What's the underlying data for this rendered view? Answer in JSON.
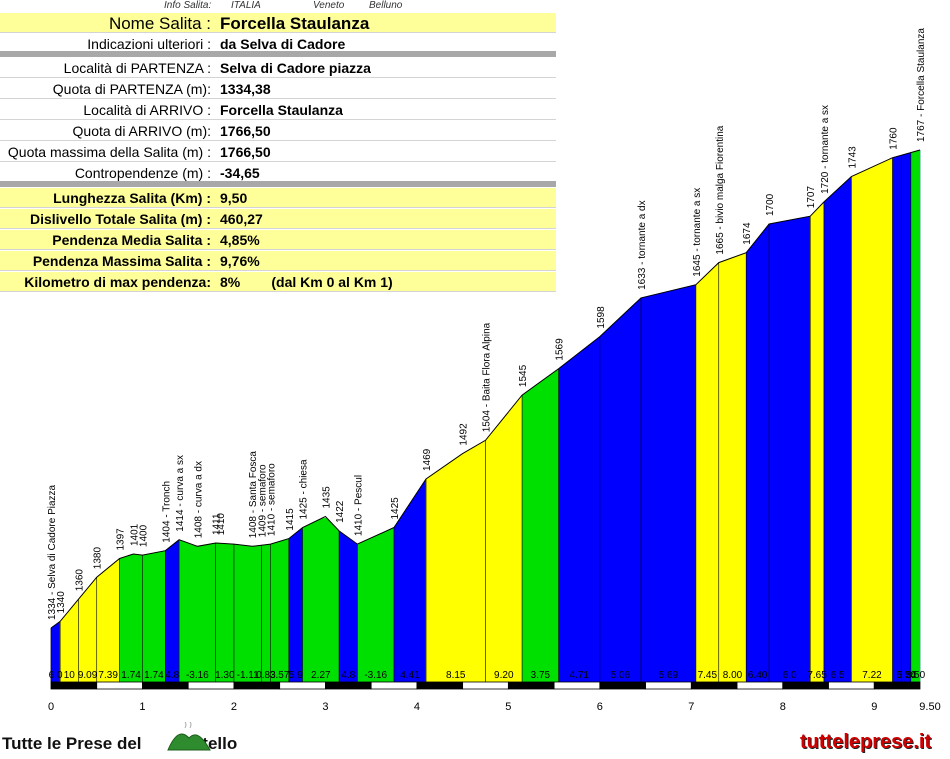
{
  "info_header": {
    "label": "Info Salita:",
    "country": "ITALIA",
    "region": "Veneto",
    "province": "Belluno"
  },
  "info_rows": [
    {
      "label": "Nome Salita :",
      "value": "Forcella Staulanza",
      "style": "title"
    },
    {
      "label": "Indicazioni ulteriori :",
      "value": "da Selva di Cadore",
      "style": "plain"
    },
    {
      "label": "Località di PARTENZA :",
      "value": "Selva di Cadore piazza",
      "style": "plain"
    },
    {
      "label": "Quota di PARTENZA (m):",
      "value": "1334,38",
      "style": "plain"
    },
    {
      "label": "Località di ARRIVO :",
      "value": "Forcella Staulanza",
      "style": "plain"
    },
    {
      "label": "Quota di ARRIVO (m):",
      "value": "1766,50",
      "style": "plain"
    },
    {
      "label": "Quota massima della Salita (m) :",
      "value": "1766,50",
      "style": "plain"
    },
    {
      "label": "Contropendenze (m) :",
      "value": "-34,65",
      "style": "plain"
    },
    {
      "label": "Lunghezza Salita (Km) :",
      "value": "9,50",
      "style": "summary"
    },
    {
      "label": "Dislivello Totale Salita (m) :",
      "value": "460,27",
      "style": "summary"
    },
    {
      "label": "Pendenza Media Salita :",
      "value": "4,85%",
      "style": "summary"
    },
    {
      "label": "Pendenza Massima Salita :",
      "value": "9,76%",
      "style": "summary"
    },
    {
      "label": "Kilometro di max pendenza:",
      "value": "8%        (dal Km 0 al Km 1)",
      "style": "summary"
    }
  ],
  "footer": {
    "left_text": "Tutte le Prese del",
    "left_text_tail": "ontello",
    "right_text": "tutteleprese.it"
  },
  "colors": {
    "blue": "#0000ff",
    "yellow": "#ffff00",
    "green": "#00e000",
    "black": "#000000",
    "row_yellow": "#ffff99"
  },
  "chart_data": {
    "type": "area",
    "x_ticks": [
      "0",
      "1",
      "2",
      "3",
      "4",
      "5",
      "6",
      "7",
      "8",
      "9",
      "9.50"
    ],
    "xlim": [
      0,
      9.5
    ],
    "profile_km": [
      0,
      0.1,
      0.3,
      0.5,
      0.75,
      0.9,
      1.0,
      1.25,
      1.4,
      1.6,
      1.8,
      2.0,
      2.2,
      2.3,
      2.4,
      2.6,
      2.75,
      3.0,
      3.15,
      3.35,
      3.75,
      4.1,
      4.5,
      4.75,
      5.15,
      5.55,
      6.0,
      6.45,
      7.05,
      7.3,
      7.6,
      7.85,
      8.3,
      8.45,
      8.75,
      9.2,
      9.5
    ],
    "profile_elev": [
      1334,
      1340,
      1360,
      1380,
      1397,
      1401,
      1400,
      1404,
      1414,
      1408,
      1411,
      1410,
      1408,
      1409,
      1410,
      1415,
      1425,
      1435,
      1422,
      1410,
      1425,
      1469,
      1492,
      1504,
      1545,
      1569,
      1598,
      1633,
      1645,
      1665,
      1674,
      1700,
      1707,
      1720,
      1743,
      1760,
      1767
    ],
    "segments": [
      {
        "x0": 0.0,
        "x1": 0.1,
        "color": "blue",
        "slope": "6.0"
      },
      {
        "x0": 0.1,
        "x1": 0.3,
        "color": "yellow",
        "slope": "10"
      },
      {
        "x0": 0.3,
        "x1": 0.5,
        "color": "yellow",
        "slope": "9.09"
      },
      {
        "x0": 0.5,
        "x1": 0.75,
        "color": "yellow",
        "slope": "7.39"
      },
      {
        "x0": 0.75,
        "x1": 1.0,
        "color": "green",
        "slope": "1.74"
      },
      {
        "x0": 1.0,
        "x1": 1.25,
        "color": "green",
        "slope": "1.74"
      },
      {
        "x0": 1.25,
        "x1": 1.4,
        "color": "blue",
        "slope": "4.8"
      },
      {
        "x0": 1.4,
        "x1": 1.8,
        "color": "green",
        "slope": "-3.16"
      },
      {
        "x0": 1.8,
        "x1": 2.0,
        "color": "green",
        "slope": "1.30"
      },
      {
        "x0": 2.0,
        "x1": 2.3,
        "color": "green",
        "slope": "-1.11"
      },
      {
        "x0": 2.3,
        "x1": 2.4,
        "color": "green",
        "slope": "0.83"
      },
      {
        "x0": 2.4,
        "x1": 2.6,
        "color": "green",
        "slope": "3.57"
      },
      {
        "x0": 2.6,
        "x1": 2.75,
        "color": "blue",
        "slope": "5.9"
      },
      {
        "x0": 2.75,
        "x1": 3.15,
        "color": "green",
        "slope": "2.27"
      },
      {
        "x0": 3.15,
        "x1": 3.35,
        "color": "blue",
        "slope": "4.8"
      },
      {
        "x0": 3.35,
        "x1": 3.75,
        "color": "green",
        "slope": "-3.16"
      },
      {
        "x0": 3.75,
        "x1": 4.1,
        "color": "blue",
        "slope": "4.41"
      },
      {
        "x0": 4.1,
        "x1": 4.75,
        "color": "yellow",
        "slope": "8.15"
      },
      {
        "x0": 4.75,
        "x1": 5.15,
        "color": "yellow",
        "slope": "9.20"
      },
      {
        "x0": 5.15,
        "x1": 5.55,
        "color": "green",
        "slope": "3.75"
      },
      {
        "x0": 5.55,
        "x1": 6.0,
        "color": "blue",
        "slope": "4.71"
      },
      {
        "x0": 6.0,
        "x1": 6.45,
        "color": "blue",
        "slope": "5.06"
      },
      {
        "x0": 6.45,
        "x1": 7.05,
        "color": "blue",
        "slope": "5.69"
      },
      {
        "x0": 7.05,
        "x1": 7.3,
        "color": "yellow",
        "slope": "7.45"
      },
      {
        "x0": 7.3,
        "x1": 7.6,
        "color": "yellow",
        "slope": "8.00"
      },
      {
        "x0": 7.6,
        "x1": 7.85,
        "color": "blue",
        "slope": "6.40"
      },
      {
        "x0": 7.85,
        "x1": 8.3,
        "color": "blue",
        "slope": "6.0"
      },
      {
        "x0": 8.3,
        "x1": 8.45,
        "color": "yellow",
        "slope": "7.65"
      },
      {
        "x0": 8.45,
        "x1": 8.75,
        "color": "blue",
        "slope": "6.5"
      },
      {
        "x0": 8.75,
        "x1": 9.2,
        "color": "yellow",
        "slope": "7.22"
      },
      {
        "x0": 9.2,
        "x1": 9.5,
        "color": "blue",
        "slope": "5.70"
      },
      {
        "x0": 9.5,
        "x1": 9.5,
        "color": "blue",
        "slope": "6.54"
      },
      {
        "x0": 9.5,
        "x1": 9.5,
        "color": "green",
        "slope": "3.50"
      }
    ],
    "labels": [
      {
        "km": 0.0,
        "text": "1334 - Selva di Cadore Piazza"
      },
      {
        "km": 0.1,
        "text": "1340"
      },
      {
        "km": 0.3,
        "text": "1360"
      },
      {
        "km": 0.5,
        "text": "1380"
      },
      {
        "km": 0.75,
        "text": "1397"
      },
      {
        "km": 0.9,
        "text": "1401"
      },
      {
        "km": 1.0,
        "text": "1400"
      },
      {
        "km": 1.25,
        "text": "1404 - Tronch"
      },
      {
        "km": 1.4,
        "text": "1414 - curva a sx"
      },
      {
        "km": 1.6,
        "text": "1408 - curva a dx"
      },
      {
        "km": 1.8,
        "text": "1411"
      },
      {
        "km": 1.85,
        "text": "1410"
      },
      {
        "km": 2.2,
        "text": "1408 - Santa Fosca"
      },
      {
        "km": 2.3,
        "text": "1409 - semaforo"
      },
      {
        "km": 2.4,
        "text": "1410 - semaforo"
      },
      {
        "km": 2.6,
        "text": "1415"
      },
      {
        "km": 2.75,
        "text": "1425 - chiesa"
      },
      {
        "km": 3.0,
        "text": "1435"
      },
      {
        "km": 3.15,
        "text": "1422"
      },
      {
        "km": 3.35,
        "text": "1410 - Pescul"
      },
      {
        "km": 3.75,
        "text": "1425"
      },
      {
        "km": 4.1,
        "text": "1469"
      },
      {
        "km": 4.5,
        "text": "1492"
      },
      {
        "km": 4.75,
        "text": "1504 - Baita Flora Alpina"
      },
      {
        "km": 5.15,
        "text": "1545"
      },
      {
        "km": 5.55,
        "text": "1569"
      },
      {
        "km": 6.0,
        "text": "1598"
      },
      {
        "km": 6.45,
        "text": "1633 - tornante a dx"
      },
      {
        "km": 7.05,
        "text": "1645 - tornante a sx"
      },
      {
        "km": 7.3,
        "text": "1665 - bivio malga Fiorentina"
      },
      {
        "km": 7.6,
        "text": "1674"
      },
      {
        "km": 7.85,
        "text": "1700"
      },
      {
        "km": 8.3,
        "text": "1707"
      },
      {
        "km": 8.45,
        "text": "1720 - tornante a sx"
      },
      {
        "km": 8.75,
        "text": "1743"
      },
      {
        "km": 9.2,
        "text": "1760"
      },
      {
        "km": 9.5,
        "text": "1767 - Forcella Staulanza"
      }
    ]
  }
}
